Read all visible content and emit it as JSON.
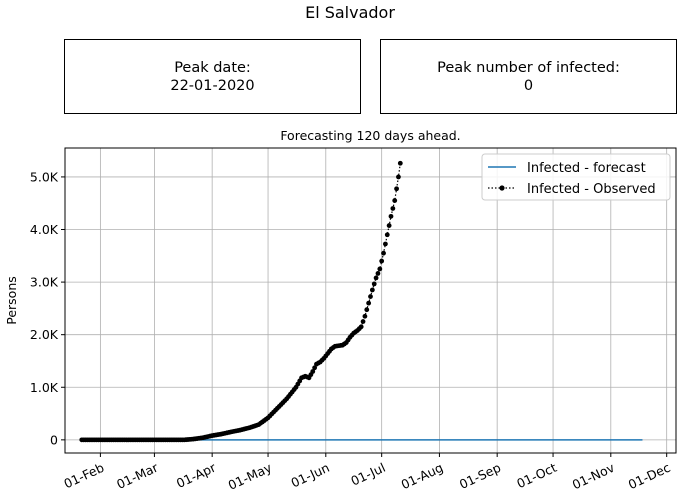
{
  "figure": {
    "title": "El Salvador"
  },
  "peak_date_box": {
    "label": "Peak date:",
    "value": "22-01-2020"
  },
  "peak_infected_box": {
    "label": "Peak number of infected:",
    "value": "0"
  },
  "chart_data": {
    "type": "line",
    "title": "Forecasting 120 days ahead.",
    "xlabel": "",
    "ylabel": "Persons",
    "x_axis_type": "date",
    "xlim": [
      "2020-01-13",
      "2020-12-06"
    ],
    "ylim": [
      -250,
      5550
    ],
    "xticks": [
      {
        "date": "2020-02-01",
        "label": "01-Feb"
      },
      {
        "date": "2020-03-01",
        "label": "01-Mar"
      },
      {
        "date": "2020-04-01",
        "label": "01-Apr"
      },
      {
        "date": "2020-05-01",
        "label": "01-May"
      },
      {
        "date": "2020-06-01",
        "label": "01-Jun"
      },
      {
        "date": "2020-07-01",
        "label": "01-Jul"
      },
      {
        "date": "2020-08-01",
        "label": "01-Aug"
      },
      {
        "date": "2020-09-01",
        "label": "01-Sep"
      },
      {
        "date": "2020-10-01",
        "label": "01-Oct"
      },
      {
        "date": "2020-11-01",
        "label": "01-Nov"
      },
      {
        "date": "2020-12-01",
        "label": "01-Dec"
      }
    ],
    "yticks": [
      {
        "value": 0,
        "label": "0"
      },
      {
        "value": 1000,
        "label": "1.0K"
      },
      {
        "value": 2000,
        "label": "2.0K"
      },
      {
        "value": 3000,
        "label": "3.0K"
      },
      {
        "value": 4000,
        "label": "4.0K"
      },
      {
        "value": 5000,
        "label": "5.0K"
      }
    ],
    "grid": true,
    "legend": {
      "position": "upper right"
    },
    "series": [
      {
        "name": "Infected - forecast",
        "style": "solid line",
        "color": "#1f77b4",
        "points": [
          [
            "2020-01-22",
            0
          ],
          [
            "2020-11-18",
            0
          ]
        ]
      },
      {
        "name": "Infected - Observed",
        "style": "dotted line with circle markers",
        "color": "#000000",
        "x_start": "2020-01-22",
        "x_step_days": 1,
        "anchors": [
          [
            0,
            0
          ],
          [
            55,
            0
          ],
          [
            60,
            15
          ],
          [
            65,
            40
          ],
          [
            70,
            80
          ],
          [
            75,
            110
          ],
          [
            80,
            150
          ],
          [
            85,
            185
          ],
          [
            90,
            230
          ],
          [
            95,
            290
          ],
          [
            100,
            420
          ],
          [
            105,
            600
          ],
          [
            110,
            780
          ],
          [
            115,
            1000
          ],
          [
            118,
            1180
          ],
          [
            120,
            1210
          ],
          [
            122,
            1180
          ],
          [
            124,
            1300
          ],
          [
            126,
            1440
          ],
          [
            128,
            1480
          ],
          [
            130,
            1550
          ],
          [
            132,
            1640
          ],
          [
            134,
            1730
          ],
          [
            136,
            1780
          ],
          [
            138,
            1790
          ],
          [
            140,
            1800
          ],
          [
            142,
            1850
          ],
          [
            144,
            1950
          ],
          [
            146,
            2030
          ],
          [
            148,
            2080
          ],
          [
            150,
            2150
          ],
          [
            152,
            2350
          ],
          [
            154,
            2600
          ],
          [
            156,
            2850
          ],
          [
            158,
            3080
          ],
          [
            160,
            3250
          ],
          [
            162,
            3550
          ],
          [
            164,
            3900
          ],
          [
            166,
            4250
          ],
          [
            168,
            4550
          ],
          [
            170,
            5000
          ],
          [
            171,
            5260
          ]
        ]
      }
    ]
  }
}
